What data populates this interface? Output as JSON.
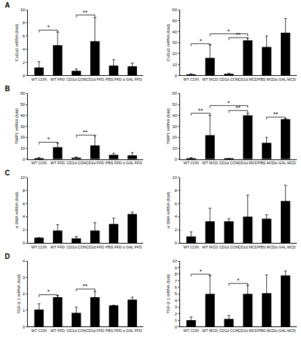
{
  "chart_data": [
    {
      "type": "bar",
      "panel": "A",
      "ylabel": "Col1α1 mRNA (fold)",
      "color": "#000000",
      "categories": [
        "WT CON",
        "WT FFD",
        "CD1d CON",
        "CD1d FFD",
        "PBS FFD",
        "α GAL FFD"
      ],
      "values": [
        1.2,
        4.6,
        0.7,
        5.2,
        1.5,
        1.4
      ],
      "errors": [
        0.9,
        2.0,
        0.3,
        3.6,
        0.9,
        0.5
      ],
      "ylim": [
        0,
        10
      ],
      "yticks": [
        0,
        2,
        4,
        6,
        8,
        10
      ],
      "significance": [
        {
          "from": "WT CON",
          "to": "WT FFD",
          "label": "*",
          "y": 6.9
        },
        {
          "from": "CD1d CON",
          "to": "CD1d FFD",
          "label": "**",
          "y": 9.2
        }
      ]
    },
    {
      "type": "bar",
      "ylabel": "Col1α1 mRNA (fold)",
      "color": "#000000",
      "categories": [
        "WT CON",
        "WT MCD",
        "CD1d CON",
        "CD1d MCD",
        "PBS MCD",
        "α GAL MCD"
      ],
      "values": [
        1,
        16,
        1.5,
        32,
        26,
        39
      ],
      "errors": [
        0.5,
        12,
        0.5,
        2,
        10,
        13
      ],
      "ylim": [
        0,
        60
      ],
      "yticks": [
        0,
        10,
        20,
        30,
        40,
        50,
        60
      ],
      "significance": [
        {
          "from": "WT CON",
          "to": "WT MCD",
          "label": "*",
          "y": 29
        },
        {
          "from": "WT MCD",
          "to": "CD1d MCD",
          "label": "*",
          "y": 38
        },
        {
          "from": "CD1d CON",
          "to": "CD1d MCD",
          "label": "**",
          "y": 34.5
        }
      ]
    },
    {
      "type": "bar",
      "panel": "B",
      "ylabel": "TIMP1 mRNA (fold)",
      "color": "#000000",
      "categories": [
        "WT CON",
        "WT FFD",
        "CD1d CON",
        "CD1d FFD",
        "PBS FFD",
        "α GAL FFD"
      ],
      "values": [
        1,
        11,
        1.5,
        12.5,
        4,
        3.5
      ],
      "errors": [
        0.5,
        4,
        0.5,
        9,
        1.5,
        2.5
      ],
      "ylim": [
        0,
        60
      ],
      "yticks": [
        0,
        10,
        20,
        30,
        40,
        50,
        60
      ],
      "significance": [
        {
          "from": "WT CON",
          "to": "WT FFD",
          "label": "*",
          "y": 15.5
        },
        {
          "from": "CD1d CON",
          "to": "CD1d FFD",
          "label": "**",
          "y": 22
        }
      ]
    },
    {
      "type": "bar",
      "ylabel": "TIMP1 mRNA (fold)",
      "color": "#000000",
      "categories": [
        "WT CON",
        "WT MCD",
        "CD1d CON",
        "CD1d MCD",
        "PBS MCD",
        "α GAL MCD"
      ],
      "values": [
        1,
        22,
        0.5,
        40,
        15,
        36.5
      ],
      "errors": [
        0.5,
        18,
        0.3,
        2,
        5,
        0.5
      ],
      "ylim": [
        0,
        60
      ],
      "yticks": [
        0,
        10,
        20,
        30,
        40,
        50,
        60
      ],
      "significance": [
        {
          "from": "WT CON",
          "to": "WT MCD",
          "label": "**",
          "y": 42
        },
        {
          "from": "WT MCD",
          "to": "CD1d MCD",
          "label": "*",
          "y": 49
        },
        {
          "from": "CD1d CON",
          "to": "CD1d MCD",
          "label": "**",
          "y": 44.5
        },
        {
          "from": "PBS MCD",
          "to": "α GAL MCD",
          "label": "**",
          "y": 38.5
        }
      ]
    },
    {
      "type": "bar",
      "panel": "C",
      "ylabel": "α SMA mRNA (fold)",
      "color": "#000000",
      "categories": [
        "WT CON",
        "WT FFD",
        "CD1d CON",
        "CD1d FFD",
        "PBS FFD",
        "α GAL FFD"
      ],
      "values": [
        0.8,
        1.9,
        0.7,
        1.9,
        2.9,
        4.4
      ],
      "errors": [
        0,
        0.9,
        0.3,
        1.2,
        0.9,
        0.3
      ],
      "ylim": [
        0,
        10
      ],
      "yticks": [
        0,
        2,
        4,
        6,
        8,
        10
      ]
    },
    {
      "type": "bar",
      "ylabel": "α SMA mRNA (fold)",
      "color": "#000000",
      "categories": [
        "WT CON",
        "WT MCD",
        "CD1d CON",
        "CD1d MCD",
        "PBS MCD",
        "α GAL MCD"
      ],
      "values": [
        1,
        3.3,
        3.3,
        4,
        3.7,
        6.4
      ],
      "errors": [
        0.7,
        2,
        0.4,
        3.3,
        0.6,
        2.4
      ],
      "ylim": [
        0,
        10
      ],
      "yticks": [
        0,
        2,
        4,
        6,
        8,
        10
      ]
    },
    {
      "type": "bar",
      "panel": "D",
      "ylabel": "TGF-β 1 mRNA (fold)",
      "color": "#000000",
      "categories": [
        "WT CON",
        "WT FFD",
        "CD1d CON",
        "CD1d FFD",
        "PBS FFD",
        "α GAL FFD"
      ],
      "values": [
        1.05,
        1.8,
        0.85,
        1.8,
        1.3,
        1.65
      ],
      "errors": [
        0.35,
        0.1,
        0.35,
        0.35,
        0,
        0.15
      ],
      "ylim": [
        0,
        4
      ],
      "yticks": [
        0,
        1,
        2,
        3,
        4
      ],
      "significance": [
        {
          "from": "WT CON",
          "to": "WT FFD",
          "label": "*",
          "y": 1.95
        },
        {
          "from": "CD1d CON",
          "to": "CD1d FFD",
          "label": "**",
          "y": 2.3
        }
      ]
    },
    {
      "type": "bar",
      "ylabel": "TGF-β 1 mRNA (fold)",
      "color": "#000000",
      "categories": [
        "WT CON",
        "WT MCD",
        "CD1d CON",
        "CD1d MCD",
        "PBS MCD",
        "α GAL MCD"
      ],
      "values": [
        1,
        5,
        1.2,
        5,
        5.1,
        7.8
      ],
      "errors": [
        0.5,
        2.8,
        0.5,
        1.3,
        2.8,
        0.7
      ],
      "ylim": [
        0,
        10
      ],
      "yticks": [
        0,
        1,
        2,
        3,
        4,
        5,
        6,
        7,
        8,
        9,
        10
      ],
      "significance": [
        {
          "from": "WT CON",
          "to": "WT MCD",
          "label": "*",
          "y": 8.0
        },
        {
          "from": "CD1d CON",
          "to": "CD1d MCD",
          "label": "*",
          "y": 6.6
        }
      ]
    }
  ]
}
